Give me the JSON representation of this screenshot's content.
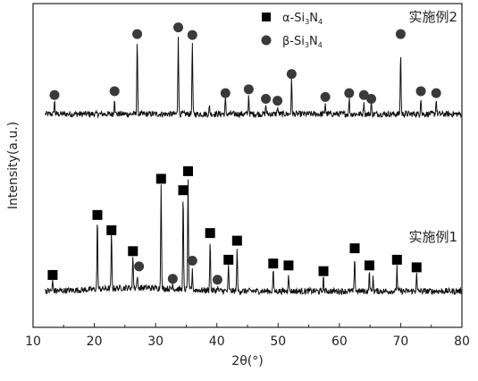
{
  "chart_data": {
    "type": "line",
    "title": "",
    "xlabel": "2θ(°)",
    "ylabel": "Intensity(a.u.)",
    "xlim": [
      10,
      80
    ],
    "xticks": [
      10,
      20,
      30,
      40,
      50,
      60,
      70,
      80
    ],
    "grid": false,
    "legend_position": "top-center",
    "legend": [
      {
        "marker": "square",
        "label_parts": [
          "α-Si",
          "3",
          "N",
          "4"
        ]
      },
      {
        "marker": "circle",
        "label_parts": [
          "β-Si",
          "3",
          "N",
          "4"
        ]
      }
    ],
    "series": [
      {
        "name": "实施例2",
        "label_position": "top-right",
        "baseline": 11.2,
        "peaks": [
          {
            "x": 13.5,
            "y": 11.9
          },
          {
            "x": 23.3,
            "y": 12.1
          },
          {
            "x": 27.0,
            "y": 15.1
          },
          {
            "x": 33.7,
            "y": 15.4
          },
          {
            "x": 36.0,
            "y": 15.0
          },
          {
            "x": 38.8,
            "y": 11.6
          },
          {
            "x": 41.4,
            "y": 12.0
          },
          {
            "x": 45.2,
            "y": 12.2
          },
          {
            "x": 48.0,
            "y": 11.7
          },
          {
            "x": 49.9,
            "y": 11.6
          },
          {
            "x": 52.2,
            "y": 13.0
          },
          {
            "x": 57.7,
            "y": 11.8
          },
          {
            "x": 61.6,
            "y": 12.0
          },
          {
            "x": 64.0,
            "y": 11.9
          },
          {
            "x": 65.2,
            "y": 11.8
          },
          {
            "x": 70.0,
            "y": 14.5
          },
          {
            "x": 73.3,
            "y": 12.1
          },
          {
            "x": 75.8,
            "y": 12.0
          }
        ],
        "markers": [
          {
            "x": 13.5,
            "y": 12.2,
            "phase": "β"
          },
          {
            "x": 23.3,
            "y": 12.4,
            "phase": "β"
          },
          {
            "x": 27.0,
            "y": 15.4,
            "phase": "β"
          },
          {
            "x": 33.7,
            "y": 15.75,
            "phase": "β"
          },
          {
            "x": 36.0,
            "y": 15.35,
            "phase": "β"
          },
          {
            "x": 41.4,
            "y": 12.3,
            "phase": "β"
          },
          {
            "x": 45.2,
            "y": 12.5,
            "phase": "β"
          },
          {
            "x": 48.0,
            "y": 12.0,
            "phase": "β"
          },
          {
            "x": 49.9,
            "y": 11.9,
            "phase": "β"
          },
          {
            "x": 52.2,
            "y": 13.3,
            "phase": "β"
          },
          {
            "x": 57.7,
            "y": 12.1,
            "phase": "β"
          },
          {
            "x": 61.6,
            "y": 12.3,
            "phase": "β"
          },
          {
            "x": 64.0,
            "y": 12.2,
            "phase": "β"
          },
          {
            "x": 65.2,
            "y": 12.0,
            "phase": "β"
          },
          {
            "x": 70.0,
            "y": 15.4,
            "phase": "β"
          },
          {
            "x": 73.3,
            "y": 12.4,
            "phase": "β"
          },
          {
            "x": 75.8,
            "y": 12.3,
            "phase": "β"
          }
        ]
      },
      {
        "name": "实施例1",
        "label_position": "middle-right",
        "baseline": 1.9,
        "peaks": [
          {
            "x": 13.2,
            "y": 2.4
          },
          {
            "x": 20.5,
            "y": 5.6
          },
          {
            "x": 22.8,
            "y": 4.8
          },
          {
            "x": 26.3,
            "y": 3.7
          },
          {
            "x": 27.0,
            "y": 2.5
          },
          {
            "x": 30.9,
            "y": 7.5
          },
          {
            "x": 32.8,
            "y": 2.2
          },
          {
            "x": 34.5,
            "y": 6.9
          },
          {
            "x": 35.3,
            "y": 7.8
          },
          {
            "x": 36.0,
            "y": 2.9
          },
          {
            "x": 38.9,
            "y": 4.6
          },
          {
            "x": 40.1,
            "y": 2.1
          },
          {
            "x": 41.9,
            "y": 3.2
          },
          {
            "x": 43.3,
            "y": 4.2
          },
          {
            "x": 49.2,
            "y": 3.0
          },
          {
            "x": 51.7,
            "y": 2.9
          },
          {
            "x": 57.4,
            "y": 2.6
          },
          {
            "x": 62.5,
            "y": 3.8
          },
          {
            "x": 64.9,
            "y": 2.9
          },
          {
            "x": 65.5,
            "y": 2.6
          },
          {
            "x": 69.4,
            "y": 3.2
          },
          {
            "x": 72.6,
            "y": 2.8
          }
        ],
        "markers": [
          {
            "x": 13.2,
            "y": 2.75,
            "phase": "α"
          },
          {
            "x": 20.5,
            "y": 5.9,
            "phase": "α"
          },
          {
            "x": 22.8,
            "y": 5.1,
            "phase": "α"
          },
          {
            "x": 26.3,
            "y": 4.0,
            "phase": "α"
          },
          {
            "x": 27.3,
            "y": 3.2,
            "phase": "β"
          },
          {
            "x": 30.9,
            "y": 7.8,
            "phase": "α"
          },
          {
            "x": 32.8,
            "y": 2.55,
            "phase": "β"
          },
          {
            "x": 34.5,
            "y": 7.2,
            "phase": "α"
          },
          {
            "x": 35.3,
            "y": 8.2,
            "phase": "α"
          },
          {
            "x": 36.0,
            "y": 3.5,
            "phase": "β"
          },
          {
            "x": 38.9,
            "y": 4.95,
            "phase": "α"
          },
          {
            "x": 40.1,
            "y": 2.5,
            "phase": "β"
          },
          {
            "x": 41.9,
            "y": 3.55,
            "phase": "α"
          },
          {
            "x": 43.3,
            "y": 4.55,
            "phase": "α"
          },
          {
            "x": 49.2,
            "y": 3.35,
            "phase": "α"
          },
          {
            "x": 51.7,
            "y": 3.25,
            "phase": "α"
          },
          {
            "x": 57.4,
            "y": 2.95,
            "phase": "α"
          },
          {
            "x": 62.5,
            "y": 4.15,
            "phase": "α"
          },
          {
            "x": 64.9,
            "y": 3.25,
            "phase": "α"
          },
          {
            "x": 69.4,
            "y": 3.55,
            "phase": "α"
          },
          {
            "x": 72.6,
            "y": 3.15,
            "phase": "α"
          }
        ]
      }
    ]
  }
}
